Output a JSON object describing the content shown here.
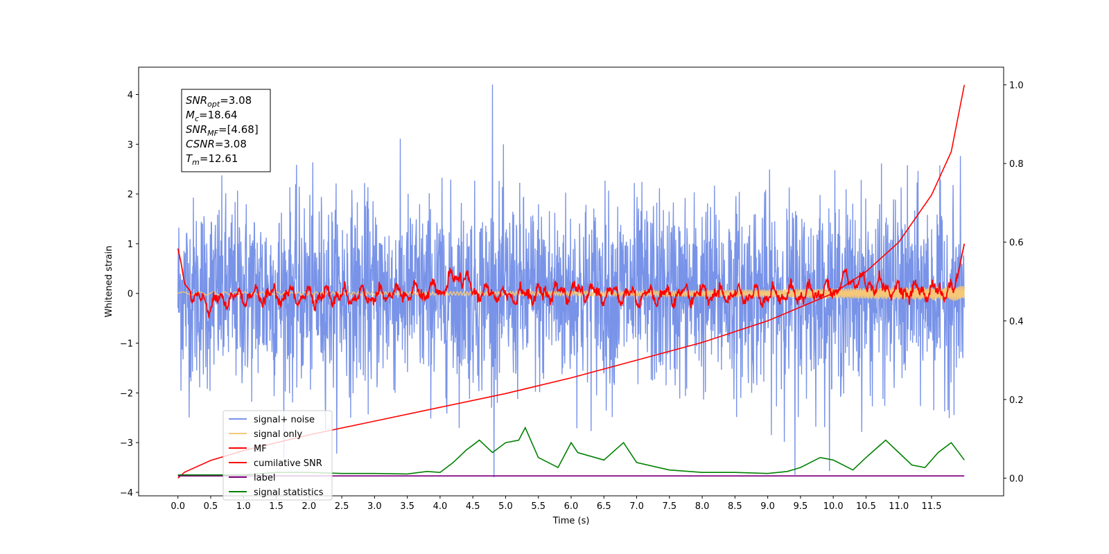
{
  "chart_data": {
    "type": "line",
    "title": "",
    "xlabel": "Time (s)",
    "ylabel": "Whitened strain",
    "ylabel_right": "",
    "xlim": [
      -0.6,
      12.6
    ],
    "ylim": [
      -4.07,
      4.55
    ],
    "ylim_right": [
      -0.045,
      1.045
    ],
    "x_ticks": [
      "0.0",
      "0.5",
      "1.0",
      "1.5",
      "2.0",
      "2.5",
      "3.0",
      "3.5",
      "4.0",
      "4.5",
      "5.0",
      "5.5",
      "6.0",
      "6.5",
      "7.0",
      "7.5",
      "8.0",
      "8.5",
      "9.0",
      "9.5",
      "10.0",
      "10.5",
      "11.0",
      "11.5"
    ],
    "y_ticks": [
      "4",
      "3",
      "2",
      "1",
      "0",
      "−1",
      "−2",
      "−3",
      "−4"
    ],
    "y_ticks_right": [
      "1.0",
      "0.8",
      "0.6",
      "0.4",
      "0.2",
      "0.0"
    ],
    "grid": false,
    "legend_position": "lower-left",
    "legend": [
      "signal+ noise",
      "signal only",
      "MF",
      "cumilative SNR",
      "label",
      "signal statistics"
    ],
    "annotations": [
      {
        "sym": "SNR",
        "sub": "opt",
        "val": "=3.08"
      },
      {
        "sym": "M",
        "sub": "c",
        "val": "=18.64"
      },
      {
        "sym": "SNR",
        "sub": "MF",
        "val": "=[4.68]"
      },
      {
        "sym": "CSNR",
        "sub": "",
        "val": "=3.08"
      },
      {
        "sym": "T",
        "sub": "m",
        "val": "=12.61"
      }
    ],
    "series": [
      {
        "name": "signal+ noise",
        "color": "#7893e8",
        "axis": "left",
        "description_points": {
          "x": [
            0,
            12
          ],
          "y": [
            0,
            0
          ]
        },
        "spread": 1.0,
        "peak_max": 4.2,
        "peak_min": -3.65
      },
      {
        "name": "signal only",
        "color": "#f5c878",
        "axis": "left",
        "x": [
          0,
          11,
          12
        ],
        "y": [
          0,
          0,
          0
        ],
        "amplitude_end": 0.15
      },
      {
        "name": "MF",
        "color": "#ff0000",
        "axis": "left",
        "x": [
          0,
          0.05,
          0.1,
          0.3,
          0.5,
          1.0,
          2.0,
          3.0,
          4.0,
          4.3,
          4.5,
          5.0,
          6.0,
          7.0,
          8.0,
          9.0,
          10.0,
          10.2,
          11.0,
          11.85,
          12.0
        ],
        "y": [
          0.9,
          0.6,
          0.2,
          -0.15,
          -0.2,
          -0.05,
          -0.05,
          -0.05,
          0.05,
          0.4,
          0.05,
          -0.05,
          0.05,
          -0.05,
          0.0,
          -0.05,
          0.05,
          0.3,
          0.05,
          0.05,
          1.0
        ]
      },
      {
        "name": "cumilative SNR",
        "color": "#ff0000",
        "axis": "right",
        "x": [
          0,
          0.1,
          0.5,
          1,
          2,
          3,
          4,
          5,
          6,
          7,
          8,
          9,
          10,
          10.5,
          11,
          11.5,
          11.8,
          12.0
        ],
        "y": [
          0.0,
          0.015,
          0.045,
          0.07,
          0.11,
          0.145,
          0.18,
          0.215,
          0.255,
          0.3,
          0.345,
          0.4,
          0.47,
          0.525,
          0.6,
          0.72,
          0.83,
          1.0
        ]
      },
      {
        "name": "label",
        "color": "#800080",
        "axis": "left",
        "x": [
          0,
          12
        ],
        "y": [
          -3.67,
          -3.67
        ]
      },
      {
        "name": "signal statistics",
        "color": "#008000",
        "axis": "left",
        "x": [
          0,
          0.5,
          1.0,
          1.5,
          2.0,
          2.5,
          3.0,
          3.5,
          3.8,
          4.0,
          4.2,
          4.4,
          4.5,
          4.6,
          4.8,
          5.0,
          5.2,
          5.3,
          5.5,
          5.8,
          6.0,
          6.1,
          6.5,
          6.8,
          7.0,
          7.5,
          8.0,
          8.5,
          9.0,
          9.3,
          9.5,
          9.8,
          10.0,
          10.3,
          10.5,
          10.8,
          11.0,
          11.2,
          11.4,
          11.6,
          11.8,
          12.0
        ],
        "y": [
          -3.65,
          -3.65,
          -3.65,
          -3.6,
          -3.6,
          -3.62,
          -3.62,
          -3.63,
          -3.58,
          -3.6,
          -3.4,
          -3.15,
          -3.05,
          -2.95,
          -3.2,
          -3.0,
          -2.95,
          -2.7,
          -3.3,
          -3.5,
          -3.0,
          -3.2,
          -3.35,
          -3.0,
          -3.4,
          -3.55,
          -3.6,
          -3.6,
          -3.62,
          -3.58,
          -3.5,
          -3.3,
          -3.35,
          -3.55,
          -3.3,
          -2.95,
          -3.2,
          -3.45,
          -3.5,
          -3.2,
          -3.0,
          -3.35
        ]
      }
    ]
  }
}
